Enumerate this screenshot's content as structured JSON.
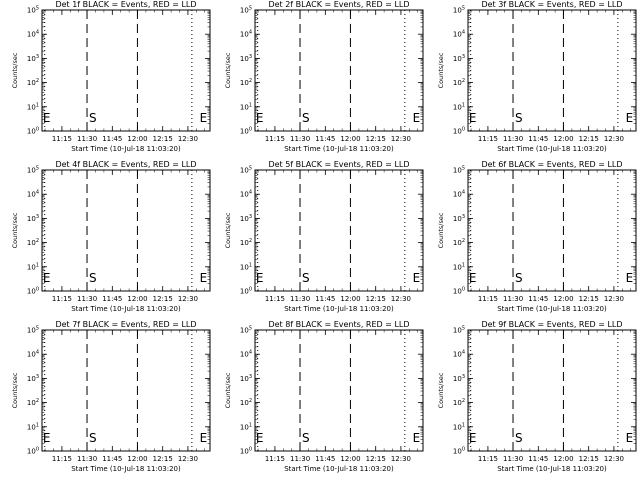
{
  "figure": {
    "background": "#ffffff",
    "ink": "#000000"
  },
  "chart_data": [
    {
      "type": "line",
      "title": "Det 1f BLACK = Events, RED = LLD",
      "xlabel": "Start Time (10-Jul-18 11:03:20)",
      "ylabel": "Counts/sec",
      "x_tick_labels": [
        "11:15",
        "11:30",
        "11:45",
        "12:00",
        "12:15",
        "12:30"
      ],
      "x_ticks_min": [
        11.85,
        26.85,
        41.85,
        56.85,
        71.85,
        86.85
      ],
      "xlim_min": [
        0,
        100
      ],
      "y_scale": "log",
      "y_tick_exponents": [
        0,
        1,
        2,
        3,
        4,
        5
      ],
      "ylim": [
        1,
        100000
      ],
      "series": [],
      "annotations": {
        "S": {
          "label": "S",
          "x_min": 26.8
        },
        "E": [
          {
            "label": "E",
            "x_min": 0.5
          },
          {
            "label": "E",
            "x_min": 93.8
          }
        ]
      },
      "dashed_lines_min": [
        26.8,
        56.8
      ],
      "dotted_lines_min": [
        1.6,
        89.2
      ]
    },
    {
      "type": "line",
      "title": "Det 2f BLACK = Events, RED = LLD",
      "xlabel": "Start Time (10-Jul-18 11:03:20)",
      "ylabel": "Counts/sec",
      "x_tick_labels": [
        "11:15",
        "11:30",
        "11:45",
        "12:00",
        "12:15",
        "12:30"
      ],
      "x_ticks_min": [
        11.85,
        26.85,
        41.85,
        56.85,
        71.85,
        86.85
      ],
      "xlim_min": [
        0,
        100
      ],
      "y_scale": "log",
      "y_tick_exponents": [
        0,
        1,
        2,
        3,
        4,
        5
      ],
      "ylim": [
        1,
        100000
      ],
      "series": [],
      "annotations": {
        "S": {
          "label": "S",
          "x_min": 26.8
        },
        "E": [
          {
            "label": "E",
            "x_min": 0.5
          },
          {
            "label": "E",
            "x_min": 93.8
          }
        ]
      },
      "dashed_lines_min": [
        26.8,
        56.8
      ],
      "dotted_lines_min": [
        1.6,
        89.2
      ]
    },
    {
      "type": "line",
      "title": "Det 3f BLACK = Events, RED = LLD",
      "xlabel": "Start Time (10-Jul-18 11:03:20)",
      "ylabel": "Counts/sec",
      "x_tick_labels": [
        "11:15",
        "11:30",
        "11:45",
        "12:00",
        "12:15",
        "12:30"
      ],
      "x_ticks_min": [
        11.85,
        26.85,
        41.85,
        56.85,
        71.85,
        86.85
      ],
      "xlim_min": [
        0,
        100
      ],
      "y_scale": "log",
      "y_tick_exponents": [
        0,
        1,
        2,
        3,
        4,
        5
      ],
      "ylim": [
        1,
        100000
      ],
      "series": [],
      "annotations": {
        "S": {
          "label": "S",
          "x_min": 26.8
        },
        "E": [
          {
            "label": "E",
            "x_min": 0.5
          },
          {
            "label": "E",
            "x_min": 93.8
          }
        ]
      },
      "dashed_lines_min": [
        26.8,
        56.8
      ],
      "dotted_lines_min": [
        1.6,
        89.2
      ]
    },
    {
      "type": "line",
      "title": "Det 4f BLACK = Events, RED = LLD",
      "xlabel": "Start Time (10-Jul-18 11:03:20)",
      "ylabel": "Counts/sec",
      "x_tick_labels": [
        "11:15",
        "11:30",
        "11:45",
        "12:00",
        "12:15",
        "12:30"
      ],
      "x_ticks_min": [
        11.85,
        26.85,
        41.85,
        56.85,
        71.85,
        86.85
      ],
      "xlim_min": [
        0,
        100
      ],
      "y_scale": "log",
      "y_tick_exponents": [
        0,
        1,
        2,
        3,
        4,
        5
      ],
      "ylim": [
        1,
        100000
      ],
      "series": [],
      "annotations": {
        "S": {
          "label": "S",
          "x_min": 26.8
        },
        "E": [
          {
            "label": "E",
            "x_min": 0.5
          },
          {
            "label": "E",
            "x_min": 93.8
          }
        ]
      },
      "dashed_lines_min": [
        26.8,
        56.8
      ],
      "dotted_lines_min": [
        1.6,
        89.2
      ]
    },
    {
      "type": "line",
      "title": "Det 5f BLACK = Events, RED = LLD",
      "xlabel": "Start Time (10-Jul-18 11:03:20)",
      "ylabel": "Counts/sec",
      "x_tick_labels": [
        "11:15",
        "11:30",
        "11:45",
        "12:00",
        "12:15",
        "12:30"
      ],
      "x_ticks_min": [
        11.85,
        26.85,
        41.85,
        56.85,
        71.85,
        86.85
      ],
      "xlim_min": [
        0,
        100
      ],
      "y_scale": "log",
      "y_tick_exponents": [
        0,
        1,
        2,
        3,
        4,
        5
      ],
      "ylim": [
        1,
        100000
      ],
      "series": [],
      "annotations": {
        "S": {
          "label": "S",
          "x_min": 26.8
        },
        "E": [
          {
            "label": "E",
            "x_min": 0.5
          },
          {
            "label": "E",
            "x_min": 93.8
          }
        ]
      },
      "dashed_lines_min": [
        26.8,
        56.8
      ],
      "dotted_lines_min": [
        1.6,
        89.2
      ]
    },
    {
      "type": "line",
      "title": "Det 6f BLACK = Events, RED = LLD",
      "xlabel": "Start Time (10-Jul-18 11:03:20)",
      "ylabel": "Counts/sec",
      "x_tick_labels": [
        "11:15",
        "11:30",
        "11:45",
        "12:00",
        "12:15",
        "12:30"
      ],
      "x_ticks_min": [
        11.85,
        26.85,
        41.85,
        56.85,
        71.85,
        86.85
      ],
      "xlim_min": [
        0,
        100
      ],
      "y_scale": "log",
      "y_tick_exponents": [
        0,
        1,
        2,
        3,
        4,
        5
      ],
      "ylim": [
        1,
        100000
      ],
      "series": [],
      "annotations": {
        "S": {
          "label": "S",
          "x_min": 26.8
        },
        "E": [
          {
            "label": "E",
            "x_min": 0.5
          },
          {
            "label": "E",
            "x_min": 93.8
          }
        ]
      },
      "dashed_lines_min": [
        26.8,
        56.8
      ],
      "dotted_lines_min": [
        1.6,
        89.2
      ]
    },
    {
      "type": "line",
      "title": "Det 7f BLACK = Events, RED = LLD",
      "xlabel": "Start Time (10-Jul-18 11:03:20)",
      "ylabel": "Counts/sec",
      "x_tick_labels": [
        "11:15",
        "11:30",
        "11:45",
        "12:00",
        "12:15",
        "12:30"
      ],
      "x_ticks_min": [
        11.85,
        26.85,
        41.85,
        56.85,
        71.85,
        86.85
      ],
      "xlim_min": [
        0,
        100
      ],
      "y_scale": "log",
      "y_tick_exponents": [
        0,
        1,
        2,
        3,
        4,
        5
      ],
      "ylim": [
        1,
        100000
      ],
      "series": [],
      "annotations": {
        "S": {
          "label": "S",
          "x_min": 26.8
        },
        "E": [
          {
            "label": "E",
            "x_min": 0.5
          },
          {
            "label": "E",
            "x_min": 93.8
          }
        ]
      },
      "dashed_lines_min": [
        26.8,
        56.8
      ],
      "dotted_lines_min": [
        1.6,
        89.2
      ]
    },
    {
      "type": "line",
      "title": "Det 8f BLACK = Events, RED = LLD",
      "xlabel": "Start Time (10-Jul-18 11:03:20)",
      "ylabel": "Counts/sec",
      "x_tick_labels": [
        "11:15",
        "11:30",
        "11:45",
        "12:00",
        "12:15",
        "12:30"
      ],
      "x_ticks_min": [
        11.85,
        26.85,
        41.85,
        56.85,
        71.85,
        86.85
      ],
      "xlim_min": [
        0,
        100
      ],
      "y_scale": "log",
      "y_tick_exponents": [
        0,
        1,
        2,
        3,
        4,
        5
      ],
      "ylim": [
        1,
        100000
      ],
      "series": [],
      "annotations": {
        "S": {
          "label": "S",
          "x_min": 26.8
        },
        "E": [
          {
            "label": "E",
            "x_min": 0.5
          },
          {
            "label": "E",
            "x_min": 93.8
          }
        ]
      },
      "dashed_lines_min": [
        26.8,
        56.8
      ],
      "dotted_lines_min": [
        1.6,
        89.2
      ]
    },
    {
      "type": "line",
      "title": "Det 9f BLACK = Events, RED = LLD",
      "xlabel": "Start Time (10-Jul-18 11:03:20)",
      "ylabel": "Counts/sec",
      "x_tick_labels": [
        "11:15",
        "11:30",
        "11:45",
        "12:00",
        "12:15",
        "12:30"
      ],
      "x_ticks_min": [
        11.85,
        26.85,
        41.85,
        56.85,
        71.85,
        86.85
      ],
      "xlim_min": [
        0,
        100
      ],
      "y_scale": "log",
      "y_tick_exponents": [
        0,
        1,
        2,
        3,
        4,
        5
      ],
      "ylim": [
        1,
        100000
      ],
      "series": [],
      "annotations": {
        "S": {
          "label": "S",
          "x_min": 26.8
        },
        "E": [
          {
            "label": "E",
            "x_min": 0.5
          },
          {
            "label": "E",
            "x_min": 93.8
          }
        ]
      },
      "dashed_lines_min": [
        26.8,
        56.8
      ],
      "dotted_lines_min": [
        1.6,
        89.2
      ]
    }
  ]
}
